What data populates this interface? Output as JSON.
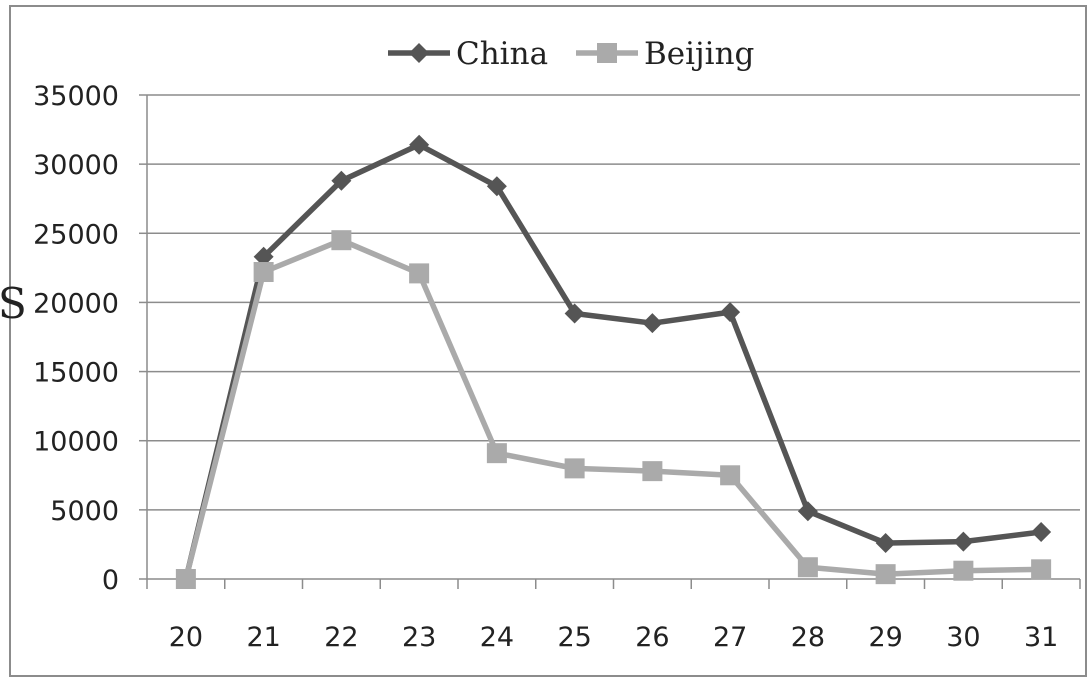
{
  "chart_data": {
    "type": "line",
    "categories": [
      "20",
      "21",
      "22",
      "23",
      "24",
      "25",
      "26",
      "27",
      "28",
      "29",
      "30",
      "31"
    ],
    "series": [
      {
        "name": "China",
        "color": "#555555",
        "marker": "diamond",
        "values": [
          0,
          23300,
          28800,
          31400,
          28400,
          19200,
          18500,
          19300,
          4900,
          2600,
          2700,
          3400
        ]
      },
      {
        "name": "Beijing",
        "color": "#aaaaaa",
        "marker": "square",
        "values": [
          0,
          22200,
          24500,
          22100,
          9100,
          8000,
          7800,
          7500,
          850,
          350,
          600,
          700
        ]
      }
    ],
    "yticks": [
      "35000",
      "30000",
      "25000",
      "20000",
      "15000",
      "10000",
      "5000",
      "0"
    ],
    "ylim": [
      0,
      35000
    ],
    "grid": true,
    "legend": "top-center"
  },
  "fragment": {
    "left_cut_text": "S"
  }
}
